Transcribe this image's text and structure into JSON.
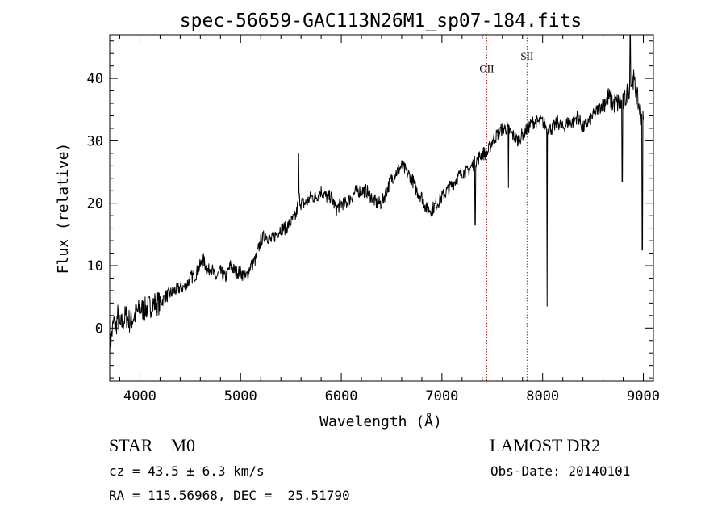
{
  "chart_data": {
    "type": "line",
    "title": "spec-56659-GAC113N26M1_sp07-184.fits",
    "xlabel": "Wavelength (Å)",
    "ylabel": "Flux (relative)",
    "xlim": [
      3700,
      9100
    ],
    "ylim": [
      -8.5,
      47
    ],
    "xticks": [
      4000,
      5000,
      6000,
      7000,
      8000,
      9000
    ],
    "xtick_labels": [
      "4000",
      "5000",
      "6000",
      "7000",
      "8000",
      "9000"
    ],
    "yticks": [
      0,
      10,
      20,
      30,
      40
    ],
    "ytick_labels": [
      "0",
      "10",
      "20",
      "30",
      "40"
    ],
    "grid": false,
    "line_color": "#000000",
    "series": [
      {
        "x": [
          3700,
          3720,
          3740,
          3760,
          3780,
          3800,
          3830,
          3860,
          3900,
          3950,
          4000,
          4050,
          4100,
          4150,
          4200,
          4250,
          4300,
          4350,
          4400,
          4450,
          4500,
          4550,
          4600,
          4630,
          4650,
          4680,
          4700,
          4750,
          4800,
          4850,
          4900,
          4950,
          5000,
          5050,
          5100,
          5150,
          5200,
          5250,
          5300,
          5350,
          5400,
          5450,
          5500,
          5550,
          5580,
          5600,
          5650,
          5700,
          5750,
          5800,
          5850,
          5900,
          5950,
          6000,
          6050,
          6100,
          6150,
          6200,
          6250,
          6300,
          6350,
          6400,
          6450,
          6500,
          6550,
          6600,
          6650,
          6700,
          6750,
          6800,
          6850,
          6900,
          6950,
          7000,
          7050,
          7100,
          7150,
          7200,
          7250,
          7300,
          7350,
          7400,
          7450,
          7500,
          7550,
          7600,
          7650,
          7700,
          7750,
          7800,
          7850,
          7900,
          7950,
          8000,
          8050,
          8100,
          8150,
          8200,
          8250,
          8300,
          8350,
          8400,
          8450,
          8500,
          8550,
          8600,
          8650,
          8700,
          8750,
          8800,
          8850,
          8900,
          8950,
          9000
        ],
        "y": [
          -3,
          -1,
          1,
          0,
          2,
          0,
          1,
          2,
          1,
          2,
          3,
          3,
          3.5,
          4,
          4,
          5,
          5.5,
          6,
          6.5,
          6.5,
          8,
          8.5,
          10,
          11,
          10,
          9,
          10,
          8,
          9,
          8,
          10,
          9,
          9,
          8,
          10,
          11,
          14,
          15,
          14,
          15,
          16,
          16,
          17,
          18,
          21,
          20,
          20,
          21,
          21,
          22,
          21,
          21,
          19,
          20,
          20,
          21,
          22,
          22,
          22,
          21,
          20,
          20,
          22,
          24,
          25,
          26,
          25,
          24,
          22,
          21,
          19,
          19,
          20,
          21,
          22,
          23,
          24,
          25,
          25,
          26,
          27,
          28,
          28,
          30,
          31,
          32,
          32,
          31,
          30,
          31,
          32,
          33,
          33,
          33,
          32,
          32,
          33,
          32,
          33,
          33,
          34,
          32,
          33,
          34,
          35,
          36,
          37,
          36,
          36,
          36,
          38,
          40,
          36,
          33
        ]
      }
    ],
    "absorption_features": [
      {
        "x": 5577,
        "y": 28
      },
      {
        "x": 7330,
        "y": 16.5
      },
      {
        "x": 7660,
        "y": 22.5
      },
      {
        "x": 8045,
        "y": 3.5
      },
      {
        "x": 8790,
        "y": 23.5
      },
      {
        "x": 8870,
        "y": 47
      },
      {
        "x": 8990,
        "y": 12.5
      }
    ],
    "line_markers": [
      {
        "label": "OII",
        "x": 7445,
        "label_y": 41,
        "color": "#b22222"
      },
      {
        "label": "SII",
        "x": 7845,
        "label_y": 43,
        "color": "#b22222"
      }
    ]
  },
  "info": {
    "class_text": "STAR    M0",
    "survey": "LAMOST DR2",
    "cz_text": "cz = 43.5 ± 6.3 km/s",
    "obs_date": "Obs-Date: 20140101",
    "coords": "RA = 115.56968, DEC =  25.51790"
  }
}
